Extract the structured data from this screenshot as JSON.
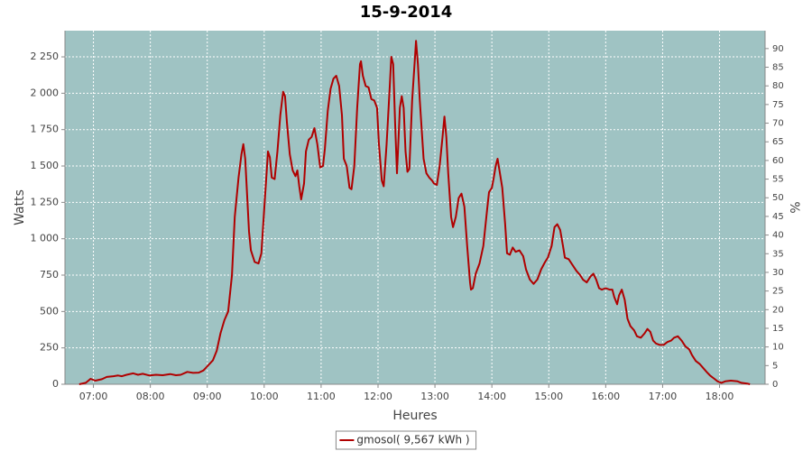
{
  "chart_data": {
    "type": "line",
    "title": "15-9-2014",
    "x_label": "Heures",
    "y_label": "Watts",
    "y2_label": "%",
    "x": [
      "06:45",
      "06:52",
      "06:57",
      "07:02",
      "07:09",
      "07:14",
      "07:21",
      "07:26",
      "07:30",
      "07:35",
      "07:42",
      "07:47",
      "07:52",
      "07:59",
      "08:06",
      "08:13",
      "08:21",
      "08:27",
      "08:32",
      "08:39",
      "08:45",
      "08:51",
      "08:56",
      "09:01",
      "09:06",
      "09:10",
      "09:14",
      "09:18",
      "09:22",
      "09:26",
      "09:29",
      "09:33",
      "09:36",
      "09:38",
      "09:40",
      "09:42",
      "09:44",
      "09:46",
      "09:50",
      "09:54",
      "09:57",
      "10:00",
      "10:03",
      "10:04",
      "10:06",
      "10:08",
      "10:11",
      "10:14",
      "10:17",
      "10:20",
      "10:22",
      "10:24",
      "10:27",
      "10:30",
      "10:33",
      "10:35",
      "10:37",
      "10:39",
      "10:42",
      "10:44",
      "10:47",
      "10:50",
      "10:53",
      "10:56",
      "10:59",
      "11:02",
      "11:04",
      "11:07",
      "11:10",
      "11:13",
      "11:16",
      "11:19",
      "11:22",
      "11:24",
      "11:27",
      "11:30",
      "11:32",
      "11:35",
      "11:38",
      "11:41",
      "11:42",
      "11:44",
      "11:47",
      "11:50",
      "11:53",
      "11:56",
      "11:59",
      "12:01",
      "12:04",
      "12:06",
      "12:09",
      "12:12",
      "12:14",
      "12:16",
      "12:18",
      "12:20",
      "12:21",
      "12:23",
      "12:25",
      "12:27",
      "12:29",
      "12:31",
      "12:33",
      "12:36",
      "12:39",
      "12:40",
      "12:42",
      "12:44",
      "12:46",
      "12:48",
      "12:51",
      "12:54",
      "12:57",
      "12:59",
      "13:02",
      "13:05",
      "13:08",
      "13:10",
      "13:12",
      "13:14",
      "13:17",
      "13:19",
      "13:22",
      "13:25",
      "13:28",
      "13:31",
      "13:34",
      "13:37",
      "13:38",
      "13:40",
      "13:43",
      "13:47",
      "13:51",
      "13:55",
      "13:57",
      "14:00",
      "14:02",
      "14:04",
      "14:06",
      "14:08",
      "14:11",
      "14:14",
      "14:16",
      "14:19",
      "14:22",
      "14:25",
      "14:29",
      "14:33",
      "14:36",
      "14:40",
      "14:44",
      "14:48",
      "14:52",
      "14:56",
      "14:59",
      "15:03",
      "15:06",
      "15:09",
      "15:12",
      "15:15",
      "15:17",
      "15:21",
      "15:25",
      "15:29",
      "15:33",
      "15:36",
      "15:40",
      "15:44",
      "15:47",
      "15:50",
      "15:53",
      "15:56",
      "16:00",
      "16:04",
      "16:07",
      "16:09",
      "16:12",
      "16:14",
      "16:17",
      "16:20",
      "16:23",
      "16:26",
      "16:30",
      "16:33",
      "16:37",
      "16:41",
      "16:44",
      "16:47",
      "16:50",
      "16:53",
      "16:57",
      "17:01",
      "17:05",
      "17:09",
      "17:12",
      "17:16",
      "17:20",
      "17:24",
      "17:28",
      "17:31",
      "17:35",
      "17:39",
      "17:43",
      "17:47",
      "17:50",
      "17:54",
      "17:58",
      "18:02",
      "18:06",
      "18:12",
      "18:19",
      "18:23",
      "18:29",
      "18:32"
    ],
    "series": [
      {
        "name": "gmosol( 9,567 kWh )",
        "color": "#b00000",
        "values": [
          0,
          10,
          37,
          25,
          35,
          50,
          55,
          60,
          55,
          65,
          75,
          65,
          72,
          60,
          65,
          62,
          70,
          62,
          65,
          85,
          78,
          80,
          95,
          130,
          165,
          230,
          350,
          440,
          500,
          750,
          1150,
          1420,
          1580,
          1650,
          1550,
          1300,
          1050,
          920,
          840,
          830,
          900,
          1200,
          1500,
          1600,
          1560,
          1420,
          1410,
          1600,
          1850,
          2010,
          1980,
          1800,
          1580,
          1470,
          1430,
          1470,
          1360,
          1270,
          1380,
          1600,
          1680,
          1700,
          1760,
          1650,
          1490,
          1500,
          1620,
          1880,
          2030,
          2100,
          2120,
          2050,
          1850,
          1550,
          1500,
          1350,
          1340,
          1500,
          1900,
          2200,
          2220,
          2120,
          2050,
          2040,
          1960,
          1950,
          1900,
          1650,
          1400,
          1360,
          1650,
          2000,
          2250,
          2200,
          1800,
          1450,
          1600,
          1900,
          1980,
          1900,
          1600,
          1460,
          1480,
          1950,
          2250,
          2360,
          2200,
          1950,
          1750,
          1550,
          1450,
          1420,
          1400,
          1380,
          1370,
          1500,
          1700,
          1840,
          1700,
          1450,
          1150,
          1080,
          1150,
          1280,
          1310,
          1220,
          950,
          700,
          650,
          660,
          760,
          830,
          950,
          1200,
          1320,
          1350,
          1420,
          1500,
          1550,
          1470,
          1350,
          1100,
          900,
          890,
          940,
          910,
          920,
          880,
          790,
          720,
          690,
          720,
          790,
          840,
          870,
          950,
          1080,
          1100,
          1060,
          950,
          870,
          860,
          820,
          780,
          750,
          720,
          700,
          740,
          760,
          720,
          660,
          650,
          660,
          650,
          650,
          600,
          550,
          610,
          650,
          580,
          450,
          400,
          370,
          330,
          320,
          350,
          380,
          360,
          300,
          280,
          270,
          270,
          290,
          300,
          320,
          330,
          300,
          260,
          240,
          200,
          160,
          140,
          110,
          80,
          60,
          40,
          20,
          10,
          20,
          25,
          20,
          10,
          5,
          0
        ]
      }
    ],
    "xlim": [
      "06:30",
      "18:48"
    ],
    "xticks": [
      "07:00",
      "08:00",
      "09:00",
      "10:00",
      "11:00",
      "12:00",
      "13:00",
      "14:00",
      "15:00",
      "16:00",
      "17:00",
      "18:00"
    ],
    "ylim": [
      0,
      2430
    ],
    "yticks": [
      0,
      250,
      500,
      750,
      {
        "value": 1000,
        "label": "1 000"
      },
      {
        "value": 1250,
        "label": "1 250"
      },
      {
        "value": 1500,
        "label": "1 500"
      },
      {
        "value": 1750,
        "label": "1 750"
      },
      {
        "value": 2000,
        "label": "2 000"
      },
      {
        "value": 2250,
        "label": "2 250"
      }
    ],
    "y2lim": [
      0,
      94.8
    ],
    "y2ticks": [
      0,
      5,
      10,
      15,
      20,
      25,
      30,
      35,
      40,
      45,
      50,
      55,
      60,
      65,
      70,
      75,
      80,
      85,
      90
    ],
    "grid": true,
    "legend": "bottom",
    "plot_background": "#9fc3c3"
  }
}
